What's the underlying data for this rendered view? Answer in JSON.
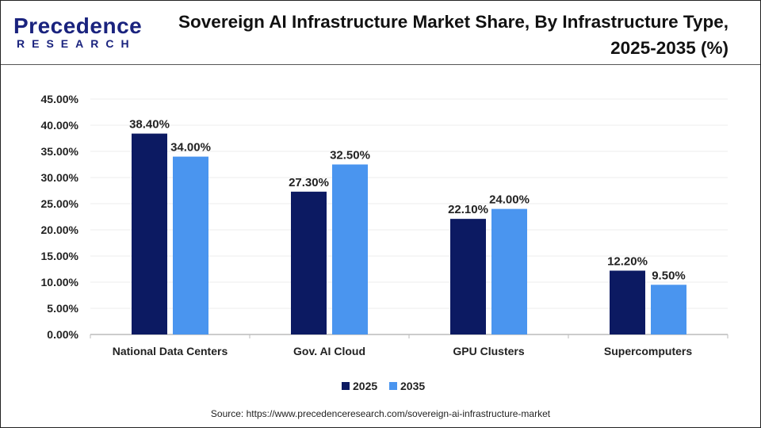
{
  "logo": {
    "name": "Precedence",
    "sub": "RESEARCH"
  },
  "chart_data": {
    "type": "bar",
    "title": "Sovereign AI Infrastructure Market Share, By Infrastructure Type, 2025-2035 (%)",
    "categories": [
      "National Data Centers",
      "Gov. AI Cloud",
      "GPU Clusters",
      "Supercomputers"
    ],
    "series": [
      {
        "name": "2025",
        "values": [
          38.4,
          27.3,
          22.1,
          12.2
        ],
        "color": "#0c1a62"
      },
      {
        "name": "2035",
        "values": [
          34.0,
          32.5,
          24.0,
          9.5
        ],
        "color": "#4a95ef"
      }
    ],
    "data_labels": [
      [
        "38.40%",
        "27.30%",
        "22.10%",
        "12.20%"
      ],
      [
        "34.00%",
        "32.50%",
        "24.00%",
        "9.50%"
      ]
    ],
    "yticks": [
      "0.00%",
      "5.00%",
      "10.00%",
      "15.00%",
      "20.00%",
      "25.00%",
      "30.00%",
      "35.00%",
      "40.00%",
      "45.00%"
    ],
    "ylim": [
      0,
      45
    ],
    "grid": true,
    "legend": "bottom"
  },
  "source": "Source: https://www.precedenceresearch.com/sovereign-ai-infrastructure-market"
}
